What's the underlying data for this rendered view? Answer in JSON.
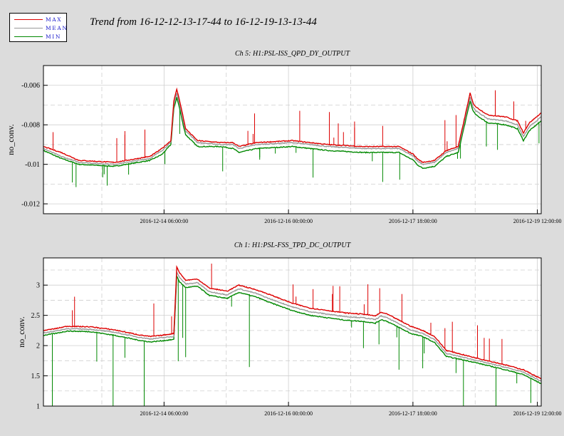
{
  "legend": {
    "items": [
      {
        "label": "MAX",
        "color": "#dd0000"
      },
      {
        "label": "MEAN",
        "color": "#999999"
      },
      {
        "label": "MIN",
        "color": "#008800"
      }
    ]
  },
  "title": "Trend from 16-12-12-13-17-44 to 16-12-19-13-13-44",
  "chart_data": [
    {
      "type": "line",
      "title": "Ch 5: H1:PSL-ISS_QPD_DY_OUTPUT",
      "ylabel": "no_conv.",
      "xlabel": "",
      "xlim": [
        "2016-12-12 13:17:44",
        "2016-12-19 13:13:44"
      ],
      "ylim": [
        -0.0125,
        -0.005
      ],
      "yticks": [
        -0.006,
        -0.008,
        -0.01,
        -0.012
      ],
      "ytick_labels": [
        "-0.006",
        "-0.008",
        "-0.01",
        "-0.012"
      ],
      "xticks": [
        "2016-12-14 06:00:00",
        "2016-12-16 00:00:00",
        "2016-12-17 18:00:00",
        "2016-12-19 12:00:00"
      ],
      "grid": true,
      "series": [
        {
          "name": "MAX",
          "color": "#dd0000",
          "x": [
            0,
            6,
            12,
            24,
            36,
            40,
            43,
            44,
            45,
            46,
            47,
            48,
            52,
            60,
            64,
            66,
            72,
            84,
            96,
            108,
            120,
            125,
            126,
            128,
            132,
            136,
            138,
            140,
            144,
            145,
            146,
            150,
            156,
            160,
            162,
            164,
            168
          ],
          "y": [
            -0.0091,
            -0.0094,
            -0.0098,
            -0.0099,
            -0.0096,
            -0.0092,
            -0.0088,
            -0.0068,
            -0.0062,
            -0.0068,
            -0.0075,
            -0.0082,
            -0.0088,
            -0.0089,
            -0.0089,
            -0.0091,
            -0.0089,
            -0.0088,
            -0.009,
            -0.0091,
            -0.0091,
            -0.0095,
            -0.0097,
            -0.0099,
            -0.0098,
            -0.0093,
            -0.0092,
            -0.0091,
            -0.0064,
            -0.0069,
            -0.0071,
            -0.0075,
            -0.0076,
            -0.0078,
            -0.0084,
            -0.0079,
            -0.0074
          ]
        },
        {
          "name": "MEAN",
          "color": "#999999",
          "x": [
            0,
            6,
            12,
            24,
            36,
            40,
            43,
            44,
            45,
            46,
            47,
            48,
            52,
            60,
            64,
            66,
            72,
            84,
            96,
            108,
            120,
            125,
            126,
            128,
            132,
            136,
            138,
            140,
            144,
            145,
            146,
            150,
            156,
            160,
            162,
            164,
            168
          ],
          "y": [
            -0.0092,
            -0.0096,
            -0.0099,
            -0.01,
            -0.0097,
            -0.0093,
            -0.0089,
            -0.007,
            -0.0064,
            -0.007,
            -0.0077,
            -0.0083,
            -0.0089,
            -0.009,
            -0.009,
            -0.0092,
            -0.009,
            -0.0089,
            -0.0091,
            -0.0092,
            -0.0092,
            -0.0096,
            -0.0098,
            -0.01,
            -0.0099,
            -0.0094,
            -0.0093,
            -0.0092,
            -0.0066,
            -0.0071,
            -0.0073,
            -0.0077,
            -0.0078,
            -0.008,
            -0.0086,
            -0.0081,
            -0.0076
          ]
        },
        {
          "name": "MIN",
          "color": "#008800",
          "x": [
            0,
            6,
            12,
            24,
            36,
            40,
            43,
            44,
            45,
            46,
            47,
            48,
            52,
            60,
            64,
            66,
            72,
            84,
            96,
            108,
            120,
            125,
            126,
            128,
            132,
            136,
            138,
            140,
            144,
            145,
            146,
            150,
            156,
            160,
            162,
            164,
            168
          ],
          "y": [
            -0.0093,
            -0.0097,
            -0.01,
            -0.0101,
            -0.0098,
            -0.0095,
            -0.009,
            -0.0072,
            -0.0066,
            -0.0072,
            -0.0079,
            -0.0085,
            -0.0091,
            -0.0091,
            -0.0092,
            -0.0094,
            -0.0092,
            -0.0091,
            -0.0093,
            -0.0094,
            -0.0094,
            -0.0098,
            -0.01,
            -0.0102,
            -0.0101,
            -0.0096,
            -0.0095,
            -0.0094,
            -0.0068,
            -0.0073,
            -0.0075,
            -0.0079,
            -0.008,
            -0.0082,
            -0.0088,
            -0.0083,
            -0.0078
          ]
        }
      ]
    },
    {
      "type": "line",
      "title": "Ch 1: H1:PSL-FSS_TPD_DC_OUTPUT",
      "ylabel": "no_conv.",
      "xlabel": "",
      "xlim": [
        "2016-12-12 13:17:44",
        "2016-12-19 13:13:44"
      ],
      "ylim": [
        1,
        3.45
      ],
      "yticks": [
        1,
        1.5,
        2,
        2.5,
        3
      ],
      "ytick_labels": [
        "1",
        "1.5",
        "2",
        "2.5",
        "3"
      ],
      "xticks": [
        "2016-12-14 06:00:00",
        "2016-12-16 00:00:00",
        "2016-12-17 18:00:00",
        "2016-12-19 12:00:00"
      ],
      "grid": true,
      "series": [
        {
          "name": "MAX",
          "color": "#dd0000",
          "x": [
            0,
            4,
            8,
            16,
            24,
            28,
            30,
            32,
            36,
            40,
            44,
            45,
            46,
            48,
            52,
            56,
            62,
            66,
            72,
            76,
            84,
            90,
            96,
            102,
            108,
            112,
            114,
            116,
            120,
            124,
            128,
            132,
            136,
            144,
            150,
            156,
            162,
            168
          ],
          "y": [
            2.25,
            2.28,
            2.32,
            2.31,
            2.26,
            2.22,
            2.2,
            2.18,
            2.15,
            2.17,
            2.2,
            3.3,
            3.2,
            3.08,
            3.1,
            2.95,
            2.9,
            3.0,
            2.92,
            2.85,
            2.7,
            2.62,
            2.58,
            2.54,
            2.52,
            2.49,
            2.55,
            2.52,
            2.42,
            2.32,
            2.25,
            2.15,
            1.92,
            1.82,
            1.75,
            1.68,
            1.6,
            1.45
          ]
        },
        {
          "name": "MEAN",
          "color": "#999999",
          "x": [
            0,
            4,
            8,
            16,
            24,
            28,
            30,
            32,
            36,
            40,
            44,
            45,
            46,
            48,
            52,
            56,
            62,
            66,
            72,
            76,
            84,
            90,
            96,
            102,
            108,
            112,
            114,
            116,
            120,
            124,
            128,
            132,
            136,
            144,
            150,
            156,
            162,
            168
          ],
          "y": [
            2.21,
            2.24,
            2.28,
            2.27,
            2.22,
            2.18,
            2.16,
            2.14,
            2.11,
            2.13,
            2.15,
            3.22,
            3.12,
            3.02,
            3.04,
            2.89,
            2.84,
            2.94,
            2.86,
            2.78,
            2.64,
            2.56,
            2.52,
            2.48,
            2.46,
            2.43,
            2.49,
            2.46,
            2.36,
            2.26,
            2.2,
            2.1,
            1.87,
            1.78,
            1.71,
            1.64,
            1.56,
            1.41
          ]
        },
        {
          "name": "MIN",
          "color": "#008800",
          "x": [
            0,
            4,
            8,
            16,
            24,
            28,
            30,
            32,
            36,
            40,
            44,
            45,
            46,
            48,
            52,
            56,
            62,
            66,
            72,
            76,
            84,
            90,
            96,
            102,
            108,
            112,
            114,
            116,
            120,
            124,
            128,
            132,
            136,
            144,
            150,
            156,
            162,
            168
          ],
          "y": [
            2.17,
            2.2,
            2.24,
            2.23,
            2.17,
            2.13,
            2.11,
            2.09,
            2.06,
            2.08,
            2.1,
            3.15,
            3.05,
            2.96,
            2.98,
            2.83,
            2.78,
            2.88,
            2.8,
            2.72,
            2.58,
            2.5,
            2.46,
            2.42,
            2.4,
            2.37,
            2.43,
            2.4,
            2.3,
            2.2,
            2.15,
            2.05,
            1.82,
            1.74,
            1.67,
            1.6,
            1.52,
            1.37
          ]
        }
      ]
    }
  ]
}
